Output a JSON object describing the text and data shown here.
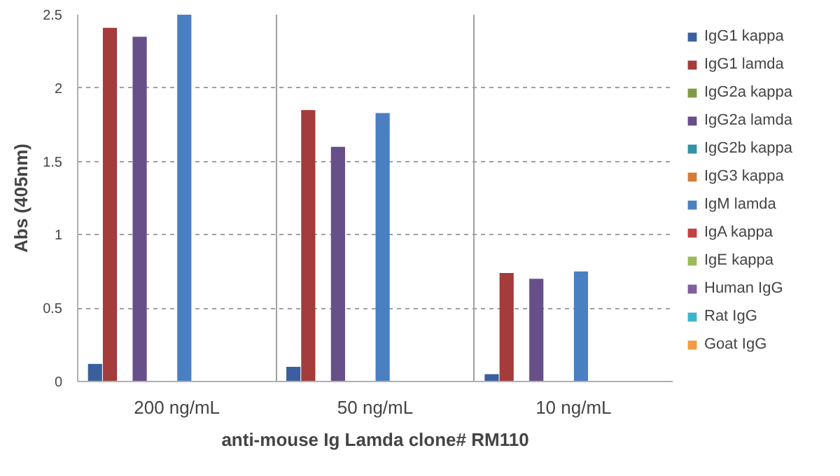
{
  "chart_data": {
    "type": "bar",
    "xlabel": "anti-mouse Ig Lamda clone# RM110",
    "ylabel": "Abs (405nm)",
    "categories": [
      "200 ng/mL",
      "50 ng/mL",
      "10 ng/mL"
    ],
    "series": [
      {
        "name": "IgG1 kappa",
        "color": "#3a5f9c",
        "values": [
          0.12,
          0.1,
          0.05
        ]
      },
      {
        "name": "IgG1 lamda",
        "color": "#a33c3a",
        "values": [
          2.41,
          1.85,
          0.74
        ]
      },
      {
        "name": "IgG2a kappa",
        "color": "#7f9a45",
        "values": [
          0,
          0,
          0
        ]
      },
      {
        "name": "IgG2a lamda",
        "color": "#674f8a",
        "values": [
          2.35,
          1.6,
          0.7
        ]
      },
      {
        "name": "IgG2b kappa",
        "color": "#3591a5",
        "values": [
          0,
          0,
          0
        ]
      },
      {
        "name": "IgG3 kappa",
        "color": "#d67c36",
        "values": [
          0,
          0,
          0
        ]
      },
      {
        "name": "IgM lamda",
        "color": "#4a7fc1",
        "values": [
          2.5,
          1.83,
          0.75
        ]
      },
      {
        "name": "IgA kappa",
        "color": "#c0413f",
        "values": [
          0,
          0,
          0
        ]
      },
      {
        "name": "IgE kappa",
        "color": "#9bbb59",
        "values": [
          0,
          0,
          0
        ]
      },
      {
        "name": "Human IgG",
        "color": "#7e5fa0",
        "values": [
          0,
          0,
          0
        ]
      },
      {
        "name": "Rat IgG",
        "color": "#3cb4cc",
        "values": [
          0,
          0,
          0
        ]
      },
      {
        "name": "Goat IgG",
        "color": "#f59a40",
        "values": [
          0,
          0,
          0
        ]
      }
    ],
    "ylim": [
      0,
      2.5
    ],
    "yticks": [
      0,
      0.5,
      1,
      1.5,
      2,
      2.5
    ],
    "grid": "y",
    "legend": "right"
  }
}
